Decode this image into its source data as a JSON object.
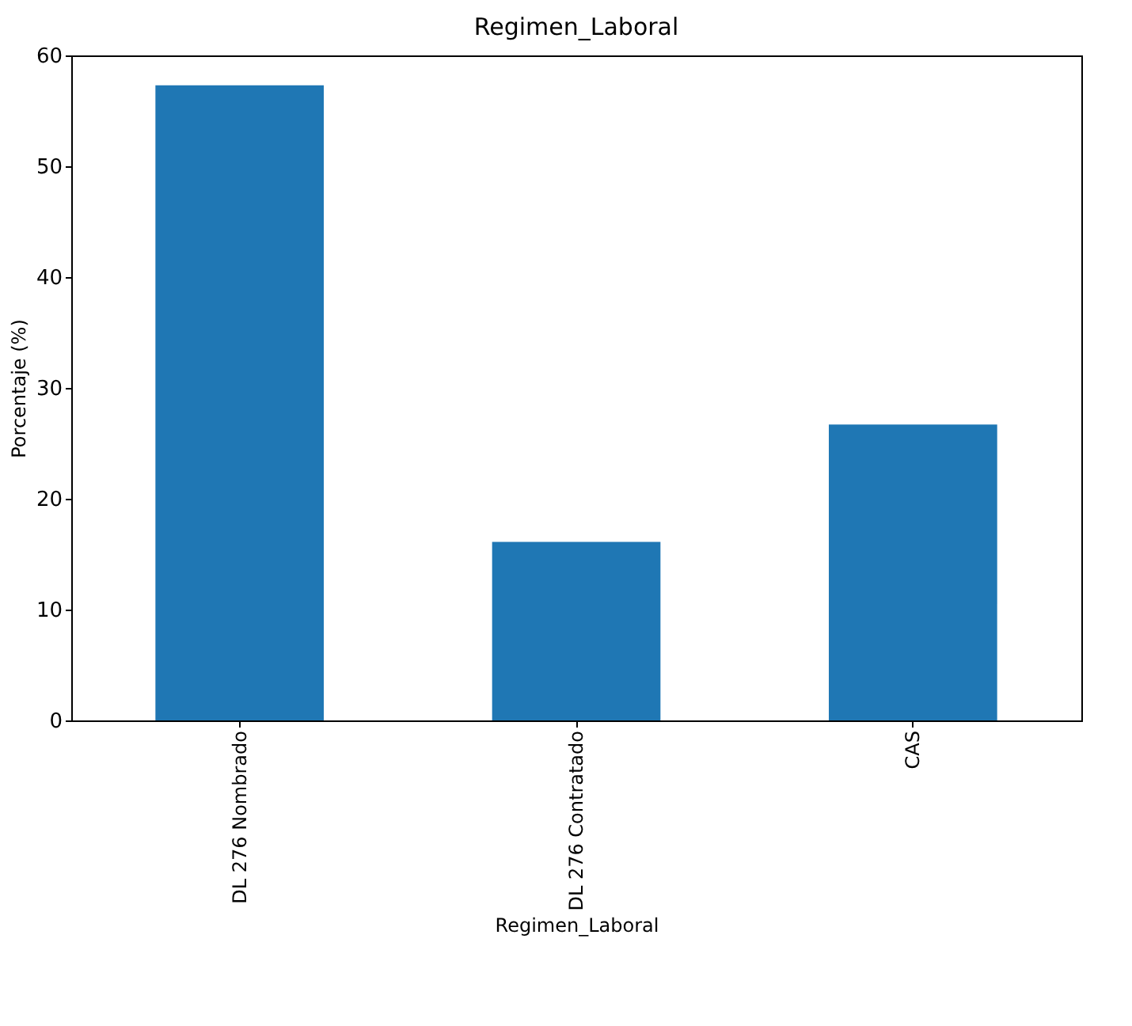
{
  "chart_data": {
    "type": "bar",
    "title": "Regimen_Laboral",
    "xlabel": "Regimen_Laboral",
    "ylabel": "Porcentaje (%)",
    "categories": [
      "DL 276 Nombrado",
      "DL 276 Contratado",
      "CAS"
    ],
    "values": [
      57.3,
      16.1,
      26.7
    ],
    "color": "#1f77b4",
    "ylim": [
      0,
      60
    ],
    "yticks": [
      0,
      10,
      20,
      30,
      40,
      50,
      60
    ],
    "grid": false
  }
}
